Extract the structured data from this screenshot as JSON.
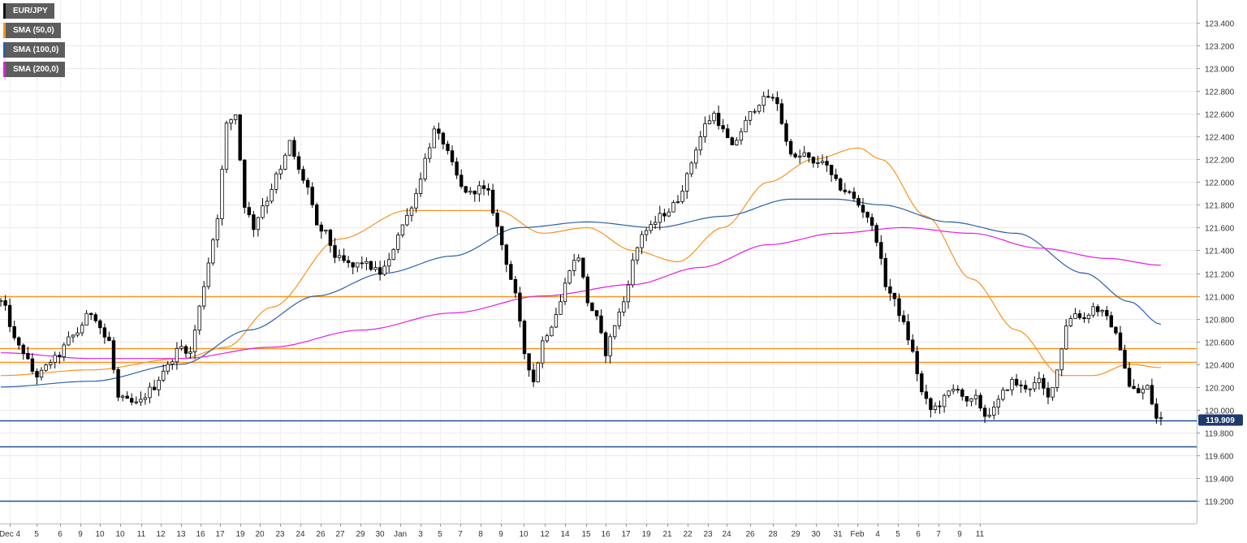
{
  "chart_data": {
    "type": "candlestick",
    "title": "",
    "symbol": "EURJPY",
    "legend": [
      {
        "label": "EUR/JPY",
        "color": "#111111"
      },
      {
        "label": "SMA (50,0)",
        "color": "#f7931e"
      },
      {
        "label": "SMA (100,0)",
        "color": "#2c5fa8"
      },
      {
        "label": "SMA (200,0)",
        "color": "#e11fe1"
      }
    ],
    "legend_position": "top-left",
    "ylim": [
      119.0,
      123.6
    ],
    "y_ticks": [
      "119.200",
      "119.400",
      "119.600",
      "119.800",
      "120.000",
      "120.200",
      "120.400",
      "120.600",
      "120.800",
      "121.000",
      "121.200",
      "121.400",
      "121.600",
      "121.800",
      "122.000",
      "122.200",
      "122.400",
      "122.600",
      "122.800",
      "123.000",
      "123.200",
      "123.400"
    ],
    "x_ticks": [
      "Dec 4",
      "5",
      "6",
      "9",
      "10",
      "10",
      "11",
      "12",
      "13",
      "16",
      "17",
      "19",
      "20",
      "23",
      "24",
      "26",
      "27",
      "29",
      "30",
      "Jan",
      "3",
      "5",
      "7",
      "8",
      "9",
      "10",
      "12",
      "14",
      "15",
      "16",
      "17",
      "19",
      "21",
      "22",
      "23",
      "24",
      "26",
      "28",
      "29",
      "30",
      "31",
      "Feb",
      "4",
      "5",
      "6",
      "7",
      "9",
      "11"
    ],
    "last_price": "119.909",
    "last_price_value": 119.909,
    "grid": true,
    "levels": [
      {
        "value": 121.0,
        "color": "#f7931e"
      },
      {
        "value": 120.54,
        "color": "#f7931e"
      },
      {
        "value": 120.42,
        "color": "#f7931e"
      },
      {
        "value": 119.909,
        "color": "#1f4e9c"
      },
      {
        "value": 119.68,
        "color": "#1f4e9c"
      },
      {
        "value": 119.2,
        "color": "#1f4e9c"
      }
    ],
    "price_anchors": [
      [
        0,
        120.95
      ],
      [
        4,
        120.55
      ],
      [
        8,
        120.3
      ],
      [
        12,
        120.45
      ],
      [
        16,
        120.65
      ],
      [
        20,
        120.85
      ],
      [
        24,
        120.6
      ],
      [
        26,
        120.1
      ],
      [
        30,
        120.05
      ],
      [
        34,
        120.2
      ],
      [
        36,
        120.35
      ],
      [
        40,
        120.55
      ],
      [
        42,
        120.5
      ],
      [
        44,
        120.9
      ],
      [
        46,
        121.3
      ],
      [
        48,
        121.7
      ],
      [
        50,
        122.5
      ],
      [
        52,
        122.6
      ],
      [
        54,
        121.8
      ],
      [
        56,
        121.6
      ],
      [
        58,
        121.8
      ],
      [
        62,
        122.1
      ],
      [
        64,
        122.35
      ],
      [
        66,
        122.1
      ],
      [
        68,
        121.95
      ],
      [
        70,
        121.6
      ],
      [
        72,
        121.55
      ],
      [
        74,
        121.35
      ],
      [
        76,
        121.3
      ],
      [
        78,
        121.25
      ],
      [
        80,
        121.3
      ],
      [
        82,
        121.25
      ],
      [
        84,
        121.2
      ],
      [
        86,
        121.3
      ],
      [
        88,
        121.55
      ],
      [
        90,
        121.7
      ],
      [
        92,
        121.9
      ],
      [
        94,
        122.2
      ],
      [
        96,
        122.45
      ],
      [
        98,
        122.35
      ],
      [
        100,
        122.15
      ],
      [
        102,
        121.95
      ],
      [
        104,
        121.9
      ],
      [
        106,
        121.95
      ],
      [
        108,
        121.9
      ],
      [
        110,
        121.6
      ],
      [
        112,
        121.3
      ],
      [
        114,
        121.0
      ],
      [
        116,
        120.5
      ],
      [
        118,
        120.25
      ],
      [
        120,
        120.6
      ],
      [
        122,
        120.75
      ],
      [
        124,
        120.95
      ],
      [
        126,
        121.25
      ],
      [
        128,
        121.35
      ],
      [
        130,
        120.95
      ],
      [
        132,
        120.8
      ],
      [
        134,
        120.5
      ],
      [
        136,
        120.75
      ],
      [
        138,
        120.95
      ],
      [
        140,
        121.3
      ],
      [
        142,
        121.55
      ],
      [
        144,
        121.6
      ],
      [
        146,
        121.7
      ],
      [
        148,
        121.75
      ],
      [
        150,
        121.85
      ],
      [
        152,
        122.05
      ],
      [
        154,
        122.3
      ],
      [
        156,
        122.5
      ],
      [
        158,
        122.6
      ],
      [
        160,
        122.45
      ],
      [
        162,
        122.3
      ],
      [
        164,
        122.45
      ],
      [
        166,
        122.6
      ],
      [
        168,
        122.7
      ],
      [
        170,
        122.75
      ],
      [
        172,
        122.7
      ],
      [
        174,
        122.35
      ],
      [
        176,
        122.2
      ],
      [
        178,
        122.25
      ],
      [
        180,
        122.15
      ],
      [
        182,
        122.2
      ],
      [
        184,
        122.05
      ],
      [
        186,
        121.95
      ],
      [
        188,
        121.9
      ],
      [
        190,
        121.8
      ],
      [
        192,
        121.7
      ],
      [
        194,
        121.5
      ],
      [
        196,
        121.1
      ],
      [
        198,
        120.95
      ],
      [
        200,
        120.75
      ],
      [
        202,
        120.5
      ],
      [
        204,
        120.15
      ],
      [
        206,
        120.0
      ],
      [
        208,
        120.05
      ],
      [
        210,
        120.15
      ],
      [
        212,
        120.2
      ],
      [
        214,
        120.05
      ],
      [
        216,
        120.1
      ],
      [
        218,
        119.95
      ],
      [
        220,
        120.0
      ],
      [
        222,
        120.15
      ],
      [
        224,
        120.25
      ],
      [
        226,
        120.2
      ],
      [
        228,
        120.2
      ],
      [
        230,
        120.25
      ],
      [
        232,
        120.1
      ],
      [
        234,
        120.35
      ],
      [
        236,
        120.75
      ],
      [
        238,
        120.85
      ],
      [
        240,
        120.8
      ],
      [
        242,
        120.9
      ],
      [
        244,
        120.85
      ],
      [
        246,
        120.75
      ],
      [
        248,
        120.55
      ],
      [
        250,
        120.2
      ],
      [
        252,
        120.15
      ],
      [
        254,
        120.2
      ],
      [
        256,
        119.92
      ]
    ],
    "sma50": [
      [
        0,
        120.3
      ],
      [
        20,
        120.35
      ],
      [
        40,
        120.45
      ],
      [
        50,
        120.55
      ],
      [
        60,
        120.9
      ],
      [
        75,
        121.5
      ],
      [
        90,
        121.75
      ],
      [
        100,
        121.75
      ],
      [
        110,
        121.75
      ],
      [
        120,
        121.55
      ],
      [
        130,
        121.6
      ],
      [
        140,
        121.4
      ],
      [
        150,
        121.3
      ],
      [
        160,
        121.6
      ],
      [
        170,
        122.0
      ],
      [
        180,
        122.2
      ],
      [
        190,
        122.3
      ],
      [
        195,
        122.2
      ],
      [
        205,
        121.7
      ],
      [
        215,
        121.15
      ],
      [
        225,
        120.7
      ],
      [
        235,
        120.3
      ],
      [
        242,
        120.3
      ],
      [
        250,
        120.4
      ],
      [
        257,
        120.37
      ]
    ],
    "sma100": [
      [
        0,
        120.2
      ],
      [
        20,
        120.25
      ],
      [
        40,
        120.4
      ],
      [
        55,
        120.7
      ],
      [
        70,
        121.0
      ],
      [
        85,
        121.2
      ],
      [
        100,
        121.35
      ],
      [
        115,
        121.6
      ],
      [
        130,
        121.65
      ],
      [
        145,
        121.6
      ],
      [
        160,
        121.7
      ],
      [
        175,
        121.85
      ],
      [
        185,
        121.85
      ],
      [
        195,
        121.8
      ],
      [
        210,
        121.65
      ],
      [
        225,
        121.55
      ],
      [
        240,
        121.2
      ],
      [
        250,
        120.95
      ],
      [
        257,
        120.75
      ]
    ],
    "sma200": [
      [
        0,
        120.5
      ],
      [
        20,
        120.45
      ],
      [
        40,
        120.45
      ],
      [
        60,
        120.55
      ],
      [
        80,
        120.7
      ],
      [
        100,
        120.85
      ],
      [
        120,
        121.0
      ],
      [
        140,
        121.1
      ],
      [
        155,
        121.25
      ],
      [
        170,
        121.45
      ],
      [
        185,
        121.55
      ],
      [
        200,
        121.6
      ],
      [
        215,
        121.55
      ],
      [
        230,
        121.42
      ],
      [
        245,
        121.33
      ],
      [
        257,
        121.27
      ]
    ]
  }
}
